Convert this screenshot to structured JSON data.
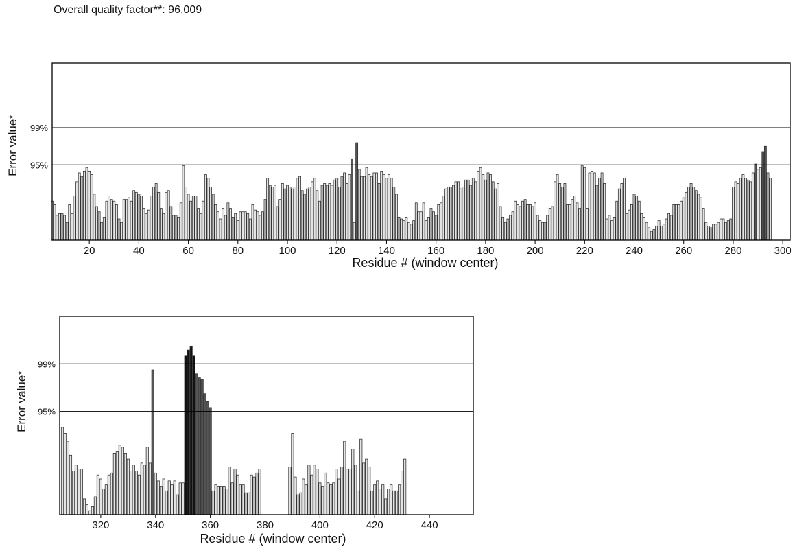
{
  "header": {
    "quality_label": "Overall quality factor**: 96.009"
  },
  "colors": {
    "bar_normal": "#e4e4e4",
    "bar_95": "#555555",
    "bar_99": "#111111",
    "line": "#000000"
  },
  "chart_data": [
    {
      "type": "bar",
      "xlabel": "Residue # (window center)",
      "ylabel": "Error value*",
      "xlim": [
        5,
        303
      ],
      "ylim": [
        0,
        1
      ],
      "xticks": [
        20,
        40,
        60,
        80,
        100,
        120,
        140,
        160,
        180,
        200,
        220,
        240,
        260,
        280,
        300
      ],
      "thresholds": [
        {
          "label": "95%",
          "value": 0.425
        },
        {
          "label": "99%",
          "value": 0.635
        }
      ],
      "x_start": 5,
      "values": [
        0.22,
        0.2,
        0.14,
        0.15,
        0.15,
        0.14,
        0.1,
        0.2,
        0.15,
        0.25,
        0.33,
        0.38,
        0.36,
        0.39,
        0.41,
        0.39,
        0.37,
        0.26,
        0.19,
        0.16,
        0.1,
        0.13,
        0.22,
        0.25,
        0.23,
        0.22,
        0.2,
        0.12,
        0.1,
        0.23,
        0.23,
        0.24,
        0.22,
        0.28,
        0.27,
        0.26,
        0.25,
        0.18,
        0.15,
        0.17,
        0.25,
        0.3,
        0.32,
        0.27,
        0.18,
        0.15,
        0.27,
        0.28,
        0.19,
        0.14,
        0.14,
        0.13,
        0.21,
        0.42,
        0.3,
        0.26,
        0.22,
        0.25,
        0.25,
        0.18,
        0.15,
        0.22,
        0.37,
        0.35,
        0.3,
        0.26,
        0.2,
        0.16,
        0.12,
        0.18,
        0.14,
        0.21,
        0.18,
        0.13,
        0.15,
        0.11,
        0.16,
        0.16,
        0.16,
        0.15,
        0.12,
        0.2,
        0.17,
        0.16,
        0.14,
        0.16,
        0.23,
        0.35,
        0.31,
        0.3,
        0.31,
        0.19,
        0.23,
        0.32,
        0.29,
        0.31,
        0.3,
        0.29,
        0.3,
        0.35,
        0.36,
        0.28,
        0.26,
        0.29,
        0.3,
        0.33,
        0.35,
        0.28,
        0.22,
        0.31,
        0.32,
        0.31,
        0.32,
        0.31,
        0.34,
        0.35,
        0.3,
        0.36,
        0.38,
        0.32,
        0.37,
        0.46,
        0.1,
        0.55,
        0.4,
        0.36,
        0.36,
        0.41,
        0.37,
        0.36,
        0.38,
        0.38,
        0.32,
        0.39,
        0.37,
        0.35,
        0.37,
        0.35,
        0.3,
        0.26,
        0.13,
        0.12,
        0.11,
        0.13,
        0.1,
        0.09,
        0.11,
        0.21,
        0.16,
        0.16,
        0.21,
        0.11,
        0.13,
        0.18,
        0.16,
        0.14,
        0.2,
        0.21,
        0.25,
        0.29,
        0.3,
        0.3,
        0.31,
        0.33,
        0.33,
        0.29,
        0.3,
        0.34,
        0.34,
        0.31,
        0.35,
        0.33,
        0.39,
        0.41,
        0.37,
        0.34,
        0.38,
        0.37,
        0.33,
        0.29,
        0.32,
        0.19,
        0.13,
        0.1,
        0.12,
        0.14,
        0.16,
        0.22,
        0.2,
        0.19,
        0.22,
        0.23,
        0.2,
        0.2,
        0.19,
        0.21,
        0.14,
        0.11,
        0.1,
        0.1,
        0.14,
        0.18,
        0.19,
        0.33,
        0.37,
        0.32,
        0.3,
        0.32,
        0.2,
        0.2,
        0.23,
        0.25,
        0.21,
        0.18,
        0.42,
        0.41,
        0.18,
        0.38,
        0.39,
        0.38,
        0.31,
        0.35,
        0.38,
        0.32,
        0.12,
        0.14,
        0.11,
        0.13,
        0.22,
        0.29,
        0.32,
        0.35,
        0.15,
        0.17,
        0.2,
        0.26,
        0.25,
        0.22,
        0.15,
        0.13,
        0.1,
        0.07,
        0.05,
        0.06,
        0.08,
        0.11,
        0.08,
        0.09,
        0.12,
        0.15,
        0.14,
        0.2,
        0.2,
        0.2,
        0.22,
        0.24,
        0.27,
        0.3,
        0.32,
        0.3,
        0.28,
        0.26,
        0.24,
        0.18,
        0.1,
        0.08,
        0.07,
        0.09,
        0.09,
        0.1,
        0.12,
        0.12,
        0.1,
        0.11,
        0.12,
        0.3,
        0.33,
        0.32,
        0.35,
        0.37,
        0.35,
        0.34,
        0.33,
        0.38,
        0.43,
        0.4,
        0.41,
        0.5,
        0.53,
        0.38,
        0.35
      ]
    },
    {
      "type": "bar",
      "xlabel": "Residue # (window center)",
      "ylabel": "Error value*",
      "xlim": [
        305,
        456
      ],
      "ylim": [
        0,
        1
      ],
      "xticks": [
        320,
        340,
        360,
        380,
        400,
        420,
        440
      ],
      "thresholds": [
        {
          "label": "95%",
          "value": 0.52
        },
        {
          "label": "99%",
          "value": 0.76
        }
      ],
      "x_start": 306,
      "values": [
        0.44,
        0.41,
        0.37,
        0.3,
        0.22,
        0.25,
        0.23,
        0.23,
        0.08,
        0.05,
        0.02,
        0.04,
        0.09,
        0.2,
        0.18,
        0.13,
        0.15,
        0.2,
        0.21,
        0.31,
        0.32,
        0.35,
        0.34,
        0.31,
        0.28,
        0.22,
        0.25,
        0.22,
        0.2,
        0.26,
        0.25,
        0.34,
        0.26,
        0.73,
        0.21,
        0.17,
        0.14,
        0.18,
        0.12,
        0.17,
        0.15,
        0.17,
        0.1,
        0.16,
        0.16,
        0.8,
        0.83,
        0.85,
        0.8,
        0.71,
        0.69,
        0.68,
        0.61,
        0.57,
        0.54,
        0.12,
        0.15,
        0.14,
        0.14,
        0.14,
        0.13,
        0.24,
        0.16,
        0.23,
        0.2,
        0.15,
        0.15,
        0.11,
        0.11,
        0.2,
        0.19,
        0.21,
        0.23,
        0.0,
        0.0,
        0.0,
        0.0,
        0.0,
        0.0,
        0.0,
        0.0,
        0.0,
        0.0,
        0.24,
        0.41,
        0.19,
        0.1,
        0.11,
        0.18,
        0.15,
        0.25,
        0.2,
        0.25,
        0.23,
        0.16,
        0.14,
        0.21,
        0.16,
        0.15,
        0.16,
        0.23,
        0.18,
        0.24,
        0.37,
        0.23,
        0.23,
        0.33,
        0.25,
        0.12,
        0.38,
        0.26,
        0.28,
        0.24,
        0.12,
        0.15,
        0.17,
        0.13,
        0.15,
        0.08,
        0.13,
        0.15,
        0.12,
        0.12,
        0.15,
        0.22,
        0.28,
        0.0,
        0.0,
        0.0,
        0.0,
        0.0,
        0.0,
        0.0,
        0.0,
        0.0,
        0.0,
        0.0,
        0.0,
        0.0,
        0.0,
        0.0,
        0.0
      ]
    }
  ]
}
